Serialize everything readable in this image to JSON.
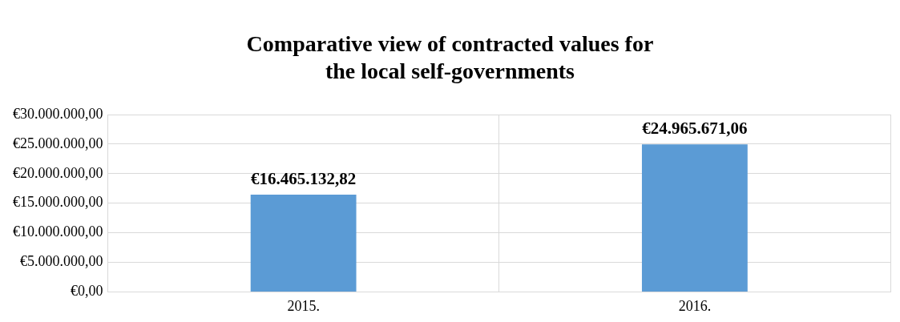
{
  "chart_data": {
    "type": "bar",
    "title": "Comparative view of contracted values for\nthe local self-governments",
    "categories": [
      "2015.",
      "2016."
    ],
    "values": [
      16465132.82,
      24965671.06
    ],
    "value_labels": [
      "€16.465.132,82",
      "€24.965.671,06"
    ],
    "color": "#5b9bd5",
    "ylim": [
      0,
      30000000
    ],
    "yticks": [
      {
        "value": 0,
        "label": "€0,00"
      },
      {
        "value": 5000000,
        "label": "€5.000.000,00"
      },
      {
        "value": 10000000,
        "label": "€10.000.000,00"
      },
      {
        "value": 15000000,
        "label": "€15.000.000,00"
      },
      {
        "value": 20000000,
        "label": "€20.000.000,00"
      },
      {
        "value": 25000000,
        "label": "€25.000.000,00"
      },
      {
        "value": 30000000,
        "label": "€30.000.000,00"
      }
    ],
    "grid": true,
    "legend": false
  }
}
